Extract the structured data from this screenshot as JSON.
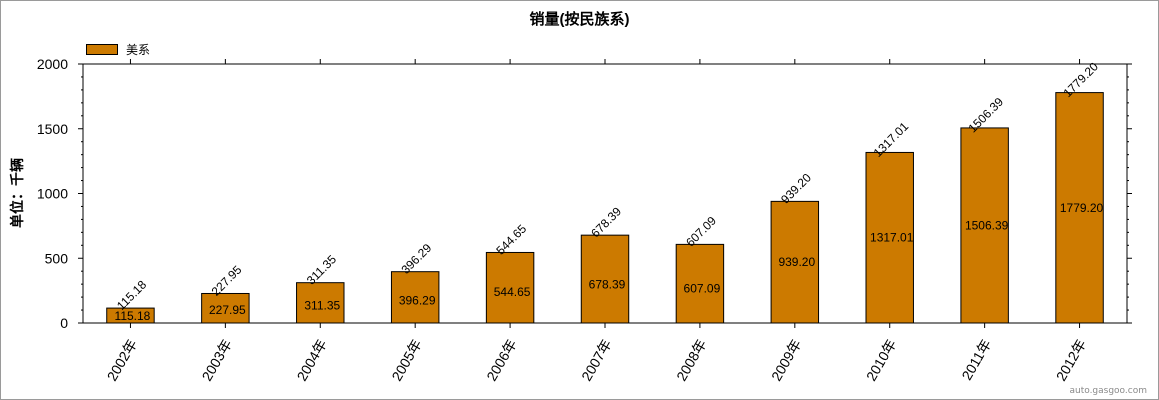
{
  "chart_data": {
    "type": "bar",
    "title": "销量(按民族系)",
    "ylabel": "单位：千辆",
    "xlabel": "",
    "categories": [
      "2002年",
      "2003年",
      "2004年",
      "2005年",
      "2006年",
      "2007年",
      "2008年",
      "2009年",
      "2010年",
      "2011年",
      "2012年"
    ],
    "series": [
      {
        "name": "美系",
        "color": "#CC7A00",
        "values": [
          115.18,
          227.95,
          311.35,
          396.29,
          544.65,
          678.39,
          607.09,
          939.2,
          1317.01,
          1506.39,
          1779.2
        ]
      }
    ],
    "value_labels": [
      "115.18",
      "227.95",
      "311.35",
      "396.29",
      "544.65",
      "678.39",
      "607.09",
      "939.20",
      "1317.01",
      "1506.39",
      "1779.20"
    ],
    "ylim": [
      0,
      2000
    ],
    "yticks": [
      0,
      500,
      1000,
      1500,
      2000
    ],
    "grid": false,
    "legend_position": "top-left"
  },
  "watermark": "auto.gasgoo.com"
}
